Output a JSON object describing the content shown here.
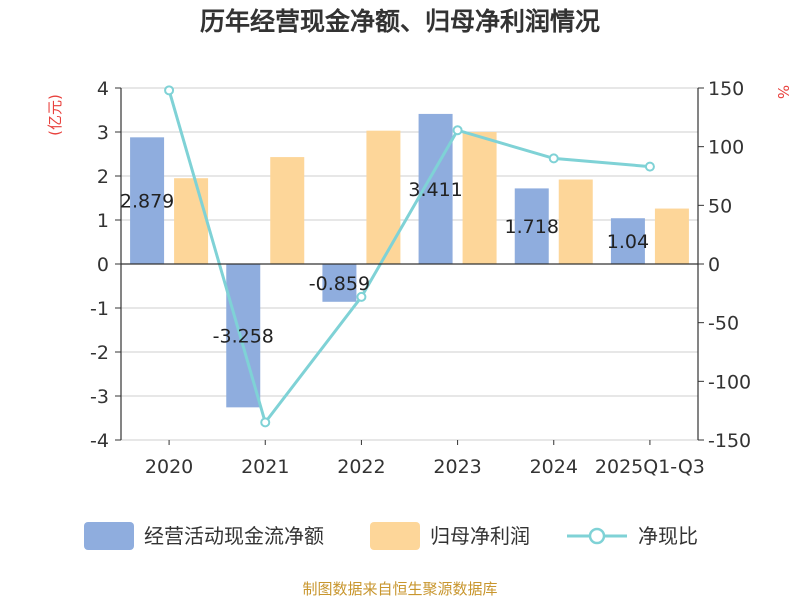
{
  "chart_data": {
    "type": "bar",
    "title": "历年经营现金净额、归母净利润情况",
    "categories": [
      "2020",
      "2021",
      "2022",
      "2023",
      "2024",
      "2025Q1-Q3"
    ],
    "series": [
      {
        "name": "经营活动现金流净额",
        "type": "bar",
        "axis": "left",
        "values": [
          2.879,
          -3.258,
          -0.859,
          3.411,
          1.718,
          1.04
        ],
        "color": "#8fadde"
      },
      {
        "name": "归母净利润",
        "type": "bar",
        "axis": "left",
        "values": [
          1.95,
          2.43,
          3.03,
          3.0,
          1.92,
          1.26
        ],
        "color": "#fdd699"
      },
      {
        "name": "净现比",
        "type": "line",
        "axis": "right",
        "values": [
          148,
          -135,
          -28,
          114,
          90,
          83
        ],
        "color": "#7fd2d6"
      }
    ],
    "data_labels": [
      "2.879",
      "-3.258",
      "-0.859",
      "3.411",
      "1.718",
      "1.04"
    ],
    "left_axis": {
      "label": "(亿元)",
      "ylim": [
        -4,
        4
      ],
      "ticks": [
        "4",
        "3",
        "2",
        "1",
        "0",
        "-1",
        "-2",
        "-3",
        "-4"
      ]
    },
    "right_axis": {
      "label": "%",
      "ylim": [
        -150,
        150
      ],
      "ticks": [
        "150",
        "100",
        "50",
        "0",
        "-50",
        "-100",
        "-150"
      ]
    },
    "source": "制图数据来自恒生聚源数据库"
  }
}
